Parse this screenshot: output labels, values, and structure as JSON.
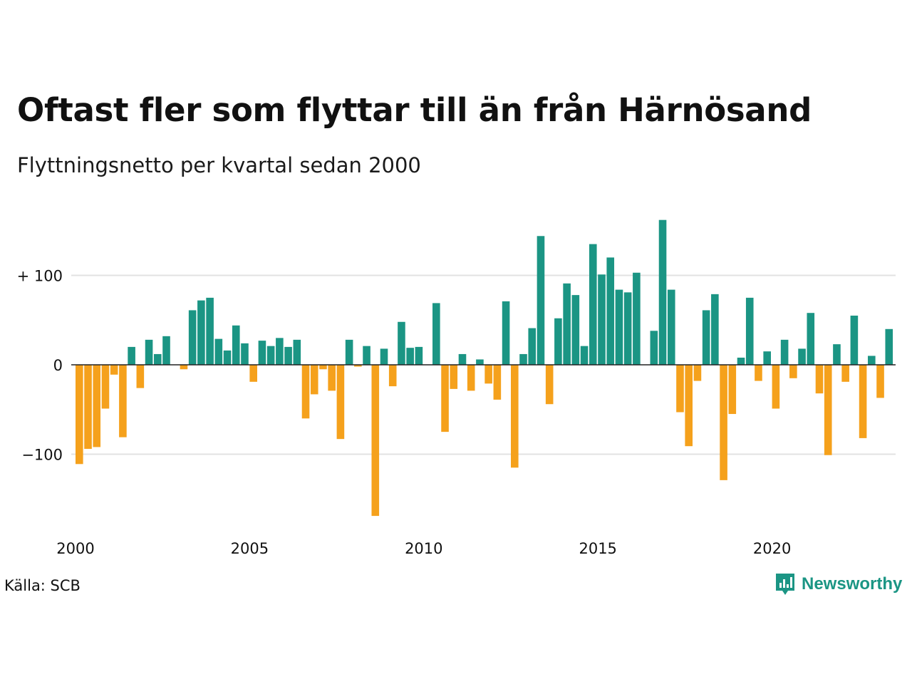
{
  "title": "Oftast fler som flyttar till än från Härnösand",
  "subtitle": "Flyttningsnetto per kvartal sedan 2000",
  "source": "Källa: SCB",
  "brand": {
    "name": "Newsworthy",
    "icon": "newsworthy-chart-logo-icon"
  },
  "colors": {
    "positive": "#1b9584",
    "negative": "#f5a11c",
    "grid": "#e2e2e2",
    "zero": "#222222"
  },
  "chart_data": {
    "type": "bar",
    "x_start": "2000 Q1",
    "x_ticks": [
      "2000",
      "2005",
      "2010",
      "2015",
      "2020"
    ],
    "y_ticks": [
      {
        "value": 100,
        "label": "+ 100"
      },
      {
        "value": 0,
        "label": "0"
      },
      {
        "value": -100,
        "label": "−100"
      }
    ],
    "ylim": [
      -175,
      165
    ],
    "grid": "horizontal",
    "values": [
      -111,
      -94,
      -92,
      -49,
      -11,
      -81,
      20,
      -26,
      28,
      12,
      32,
      0,
      -5,
      61,
      72,
      75,
      29,
      16,
      44,
      24,
      -19,
      27,
      21,
      30,
      20,
      28,
      -60,
      -33,
      -5,
      -29,
      -83,
      28,
      -2,
      21,
      -169,
      18,
      -24,
      48,
      19,
      20,
      0,
      69,
      -75,
      -27,
      12,
      -29,
      6,
      -21,
      -39,
      71,
      -115,
      12,
      41,
      144,
      -44,
      52,
      91,
      78,
      21,
      135,
      101,
      120,
      84,
      81,
      103,
      0,
      38,
      162,
      84,
      -53,
      -91,
      -18,
      61,
      79,
      -129,
      -55,
      8,
      75,
      -18,
      15,
      -49,
      28,
      -15,
      18,
      58,
      -32,
      -101,
      23,
      -19,
      55,
      -82,
      10,
      -37,
      40
    ]
  }
}
